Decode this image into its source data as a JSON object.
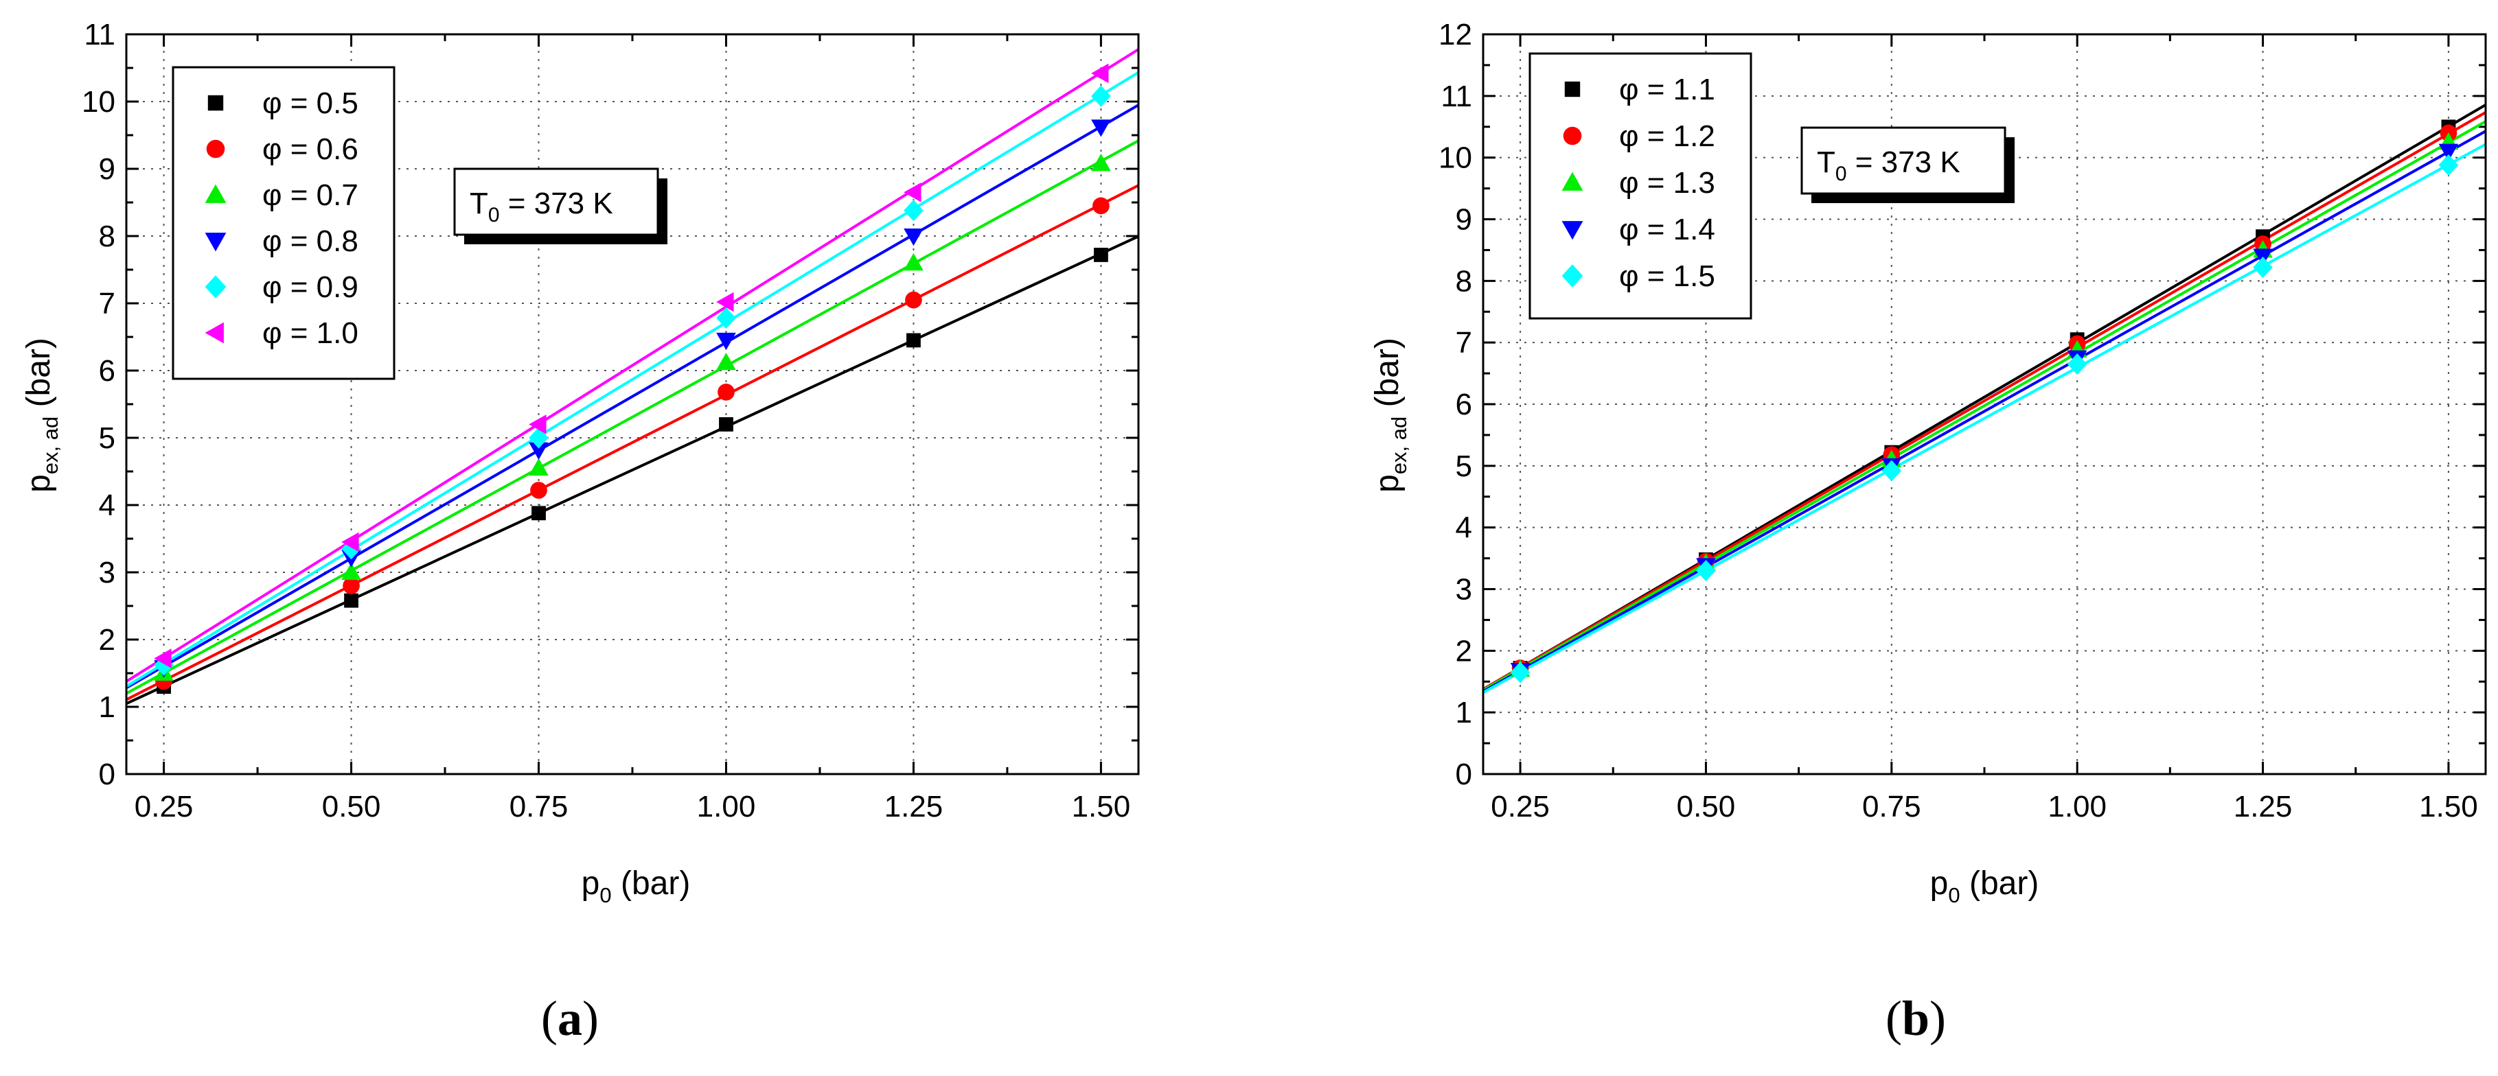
{
  "chart_data": [
    {
      "type": "scatter",
      "panel": "a",
      "panel_label": "a",
      "annotation": {
        "main": "T",
        "sub": "0",
        "rest": " = 373 K"
      },
      "xlabel": {
        "main": "p",
        "sub": "0",
        "rest": " (bar)"
      },
      "ylabel": {
        "main": "p",
        "sub": "ex, ad",
        "rest": " (bar)"
      },
      "xlim": [
        0.2,
        1.55
      ],
      "ylim": [
        0,
        11
      ],
      "xticks": [
        0.25,
        0.5,
        0.75,
        1.0,
        1.25,
        1.5
      ],
      "xtick_labels": [
        "0.25",
        "0.50",
        "0.75",
        "1.00",
        "1.25",
        "1.50"
      ],
      "yticks": [
        0,
        1,
        2,
        3,
        4,
        5,
        6,
        7,
        8,
        9,
        10,
        11
      ],
      "ytick_labels": [
        "0",
        "1",
        "2",
        "3",
        "4",
        "5",
        "6",
        "7",
        "8",
        "9",
        "10",
        "11"
      ],
      "grid": true,
      "legend_position": "top-left",
      "x": [
        0.25,
        0.5,
        0.75,
        1.0,
        1.25,
        1.5
      ],
      "series": [
        {
          "name": "φ = 0.5",
          "color": "#000000",
          "marker": "square",
          "values": [
            1.3,
            2.58,
            3.88,
            5.2,
            6.45,
            7.72
          ]
        },
        {
          "name": "φ = 0.6",
          "color": "#ff0000",
          "marker": "circle",
          "values": [
            1.38,
            2.8,
            4.22,
            5.68,
            7.05,
            8.45
          ]
        },
        {
          "name": "φ = 0.7",
          "color": "#00ee00",
          "marker": "triangle-up",
          "values": [
            1.5,
            3.0,
            4.55,
            6.12,
            7.6,
            9.08
          ]
        },
        {
          "name": "φ = 0.8",
          "color": "#0000ff",
          "marker": "triangle-down",
          "values": [
            1.58,
            3.22,
            4.82,
            6.45,
            8.0,
            9.62
          ]
        },
        {
          "name": "φ = 0.9",
          "color": "#00ffff",
          "marker": "diamond",
          "values": [
            1.62,
            3.35,
            5.0,
            6.78,
            8.38,
            10.08
          ]
        },
        {
          "name": "φ = 1.0",
          "color": "#ff00ff",
          "marker": "triangle-left",
          "values": [
            1.72,
            3.45,
            5.2,
            7.02,
            8.65,
            10.42
          ]
        }
      ]
    },
    {
      "type": "scatter",
      "panel": "b",
      "panel_label": "b",
      "annotation": {
        "main": "T",
        "sub": "0",
        "rest": " = 373 K"
      },
      "xlabel": {
        "main": "p",
        "sub": "0",
        "rest": " (bar)"
      },
      "ylabel": {
        "main": "p",
        "sub": "ex, ad",
        "rest": " (bar)"
      },
      "xlim": [
        0.2,
        1.55
      ],
      "ylim": [
        0,
        12
      ],
      "xticks": [
        0.25,
        0.5,
        0.75,
        1.0,
        1.25,
        1.5
      ],
      "xtick_labels": [
        "0.25",
        "0.50",
        "0.75",
        "1.00",
        "1.25",
        "1.50"
      ],
      "yticks": [
        0,
        1,
        2,
        3,
        4,
        5,
        6,
        7,
        8,
        9,
        10,
        11,
        12
      ],
      "ytick_labels": [
        "0",
        "1",
        "2",
        "3",
        "4",
        "5",
        "6",
        "7",
        "8",
        "9",
        "10",
        "11",
        "12"
      ],
      "grid": true,
      "legend_position": "top-left",
      "x": [
        0.25,
        0.5,
        0.75,
        1.0,
        1.25,
        1.5
      ],
      "series": [
        {
          "name": "φ = 1.1",
          "color": "#000000",
          "marker": "square",
          "values": [
            1.72,
            3.48,
            5.22,
            7.05,
            8.72,
            10.5
          ]
        },
        {
          "name": "φ = 1.2",
          "color": "#ff0000",
          "marker": "circle",
          "values": [
            1.72,
            3.45,
            5.18,
            6.98,
            8.6,
            10.4
          ]
        },
        {
          "name": "φ = 1.3",
          "color": "#00ee00",
          "marker": "triangle-up",
          "values": [
            1.7,
            3.42,
            5.1,
            6.88,
            8.5,
            10.25
          ]
        },
        {
          "name": "φ = 1.4",
          "color": "#0000ff",
          "marker": "triangle-down",
          "values": [
            1.68,
            3.38,
            5.0,
            6.75,
            8.4,
            10.1
          ]
        },
        {
          "name": "φ = 1.5",
          "color": "#00ffff",
          "marker": "diamond",
          "values": [
            1.65,
            3.3,
            4.92,
            6.65,
            8.22,
            9.88
          ]
        }
      ]
    }
  ]
}
